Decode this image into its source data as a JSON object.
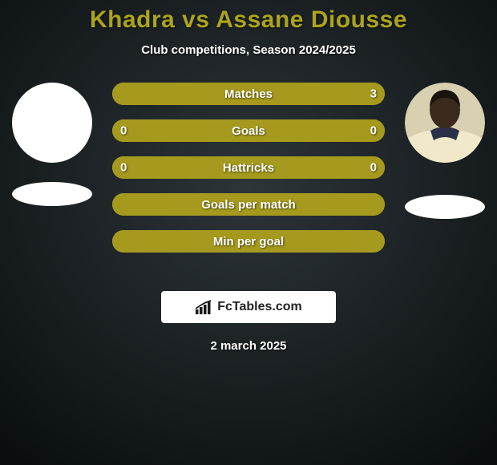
{
  "title": "Khadra vs Assane Diousse",
  "title_color": "#aca41c",
  "subtitle": "Club competitions, Season 2024/2025",
  "subtitle_color": "#ffffff",
  "background": {
    "gradient_inner": "#2d3538",
    "gradient_outer": "#0a0e10"
  },
  "players": {
    "left": {
      "avatar_bg": "#ffffff",
      "badge_bg": "#ffffff"
    },
    "right": {
      "avatar_face": "#3a2a1d",
      "avatar_shirt": "#f0e8c8",
      "avatar_collar": "#2a2f4a",
      "badge_bg": "#ffffff"
    }
  },
  "stats": {
    "row_bg": "#a59a1e",
    "fill_color": "#a59a1e",
    "track_color": "#a59a1e",
    "label_color": "#ffffff",
    "rows": [
      {
        "label": "Matches",
        "left": "",
        "right": "3",
        "left_pct": 0,
        "right_pct": 100
      },
      {
        "label": "Goals",
        "left": "0",
        "right": "0",
        "left_pct": 50,
        "right_pct": 50
      },
      {
        "label": "Hattricks",
        "left": "0",
        "right": "0",
        "left_pct": 50,
        "right_pct": 50
      },
      {
        "label": "Goals per match",
        "left": "",
        "right": "",
        "left_pct": 100,
        "right_pct": 0
      },
      {
        "label": "Min per goal",
        "left": "",
        "right": "",
        "left_pct": 100,
        "right_pct": 0
      }
    ]
  },
  "brand": {
    "icon_color": "#1a1a1a",
    "text": "FcTables.com",
    "bg": "#ffffff"
  },
  "date": "2 march 2025",
  "date_color": "#ffffff"
}
